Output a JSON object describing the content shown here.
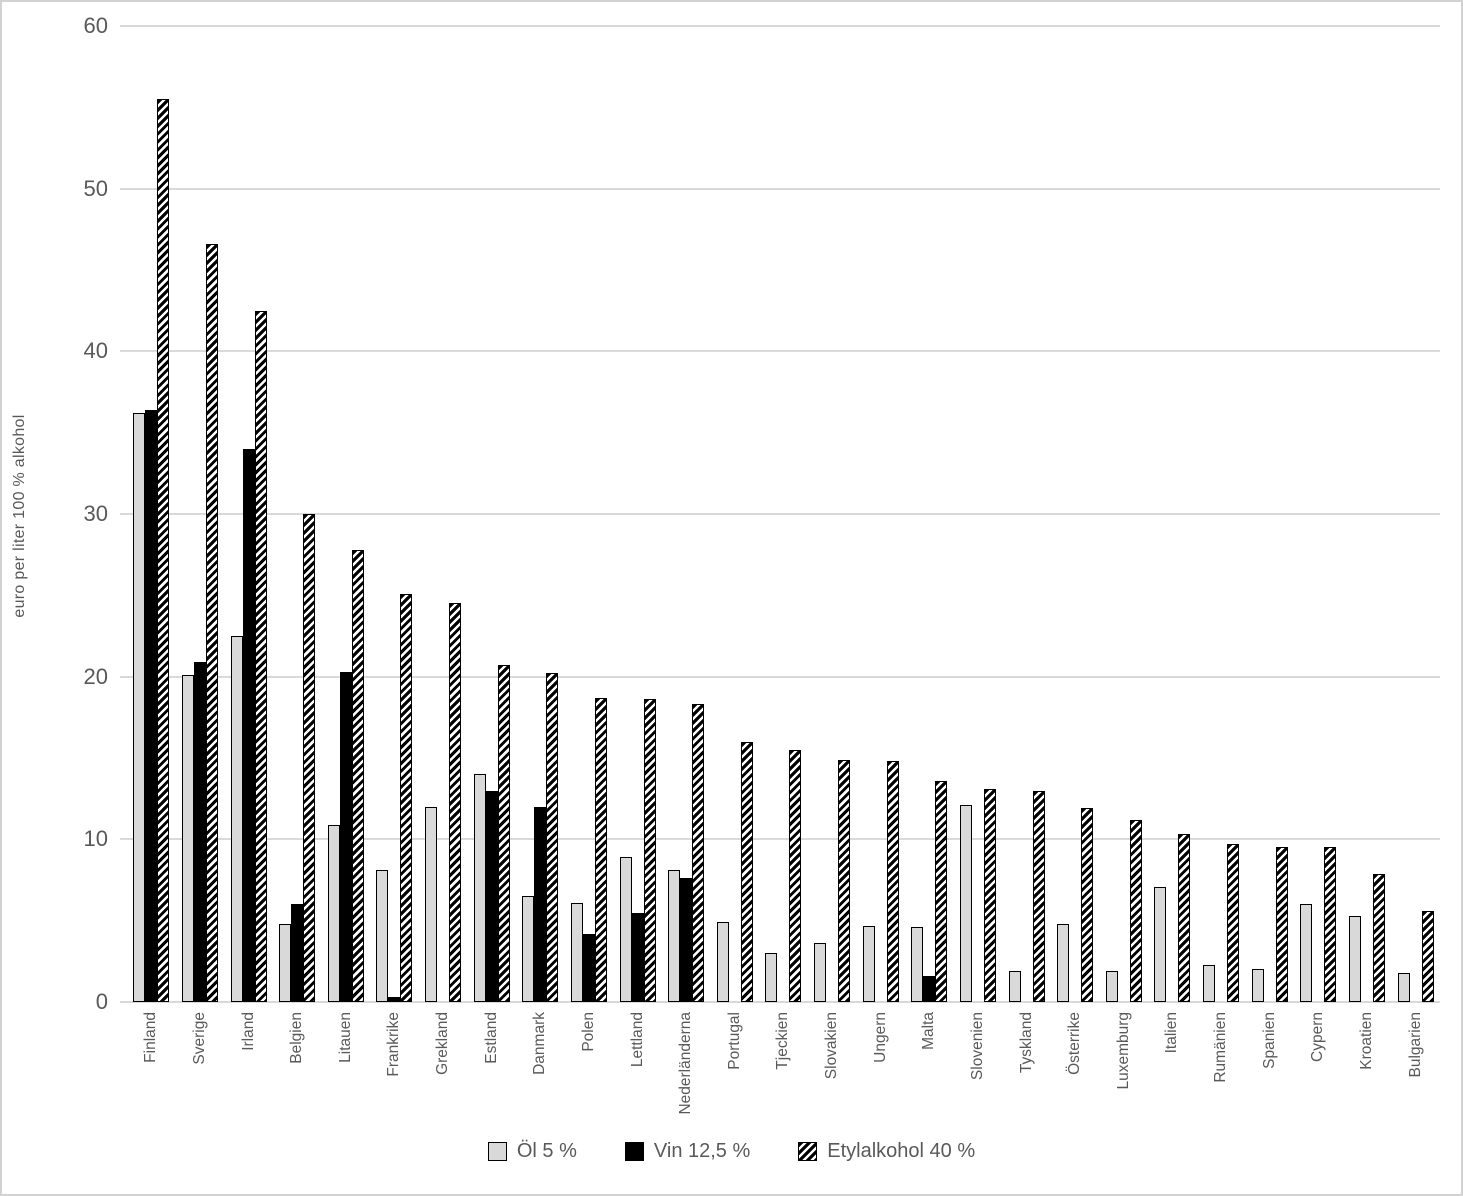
{
  "colors": {
    "bar_light_gray": "#d9d9d9",
    "bar_black": "#000000",
    "hatch_foreground": "#000000",
    "hatch_background": "#ffffff",
    "gridline": "#d9d9d9",
    "axis_text": "#595959",
    "frame_border": "#d2d2d2"
  },
  "chart_data": {
    "type": "bar",
    "title": "",
    "ylabel": "euro per liter 100 % alkohol",
    "xlabel": "",
    "ylim": [
      0,
      60
    ],
    "yticks": [
      0,
      10,
      20,
      30,
      40,
      50,
      60
    ],
    "grid": true,
    "legend_position": "bottom",
    "categories": [
      "Finland",
      "Sverige",
      "Irland",
      "Belgien",
      "Litauen",
      "Frankrike",
      "Grekland",
      "Estland",
      "Danmark",
      "Polen",
      "Lettland",
      "Nederländerna",
      "Portugal",
      "Tjeckien",
      "Slovakien",
      "Ungern",
      "Malta",
      "Slovenien",
      "Tyskland",
      "Österrike",
      "Luxemburg",
      "Italien",
      "Rumänien",
      "Spanien",
      "Cypern",
      "Kroatien",
      "Bulgarien"
    ],
    "series": [
      {
        "name": "Öl 5 %",
        "pattern": "solid-light-gray",
        "values": [
          36.2,
          20.1,
          22.5,
          4.8,
          10.9,
          8.1,
          12.0,
          14.0,
          6.5,
          6.1,
          8.9,
          8.1,
          4.9,
          3.0,
          3.6,
          4.7,
          4.6,
          12.1,
          1.9,
          4.8,
          1.9,
          7.1,
          2.3,
          2.0,
          6.0,
          5.3,
          1.8
        ]
      },
      {
        "name": "Vin 12,5 %",
        "pattern": "solid-black",
        "values": [
          36.4,
          20.9,
          34.0,
          6.0,
          20.3,
          0.3,
          0,
          13.0,
          12.0,
          4.2,
          5.5,
          7.6,
          0,
          0,
          0,
          0,
          1.6,
          0,
          0,
          0,
          0,
          0,
          0,
          0,
          0,
          0,
          0
        ]
      },
      {
        "name": "Etylalkohol 40 %",
        "pattern": "diagonal-hatch",
        "values": [
          55.5,
          46.6,
          42.5,
          30.0,
          27.8,
          25.1,
          24.5,
          20.7,
          20.2,
          18.7,
          18.6,
          18.3,
          16.0,
          15.5,
          14.9,
          14.8,
          13.6,
          13.1,
          13.0,
          11.9,
          11.2,
          10.3,
          9.7,
          9.5,
          9.5,
          7.9,
          5.6
        ]
      }
    ]
  }
}
